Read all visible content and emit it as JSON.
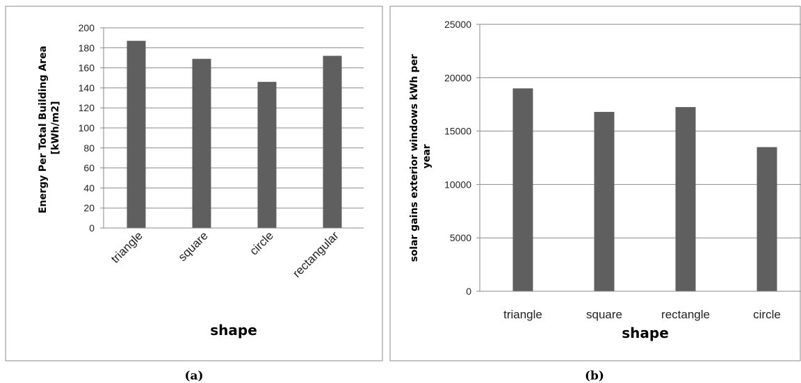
{
  "chart_data": [
    {
      "type": "bar",
      "caption": "(a)",
      "categories": [
        "triangle",
        "square",
        "circle",
        "rectangular"
      ],
      "values": [
        187,
        169,
        146,
        172
      ],
      "xlabel": "shape",
      "ylabel_lines": [
        "Energy Per Total Building Area",
        "[kWh/m2]"
      ],
      "ylim": [
        0,
        200
      ],
      "yticks": [
        "0",
        "20",
        "40",
        "60",
        "80",
        "100",
        "120",
        "140",
        "160",
        "180",
        "200"
      ],
      "grid": true,
      "bar_color": "#5f5f5f"
    },
    {
      "type": "bar",
      "caption": "(b)",
      "categories": [
        "triangle",
        "square",
        "rectangle",
        "circle"
      ],
      "values": [
        19000,
        16800,
        17250,
        13500
      ],
      "xlabel": "shape",
      "ylabel_lines": [
        "solar gains exterior windows kWh per",
        "year"
      ],
      "ylim": [
        0,
        25000
      ],
      "yticks": [
        "0",
        "5000",
        "10000",
        "15000",
        "20000",
        "25000"
      ],
      "grid": true,
      "bar_color": "#5f5f5f"
    }
  ]
}
